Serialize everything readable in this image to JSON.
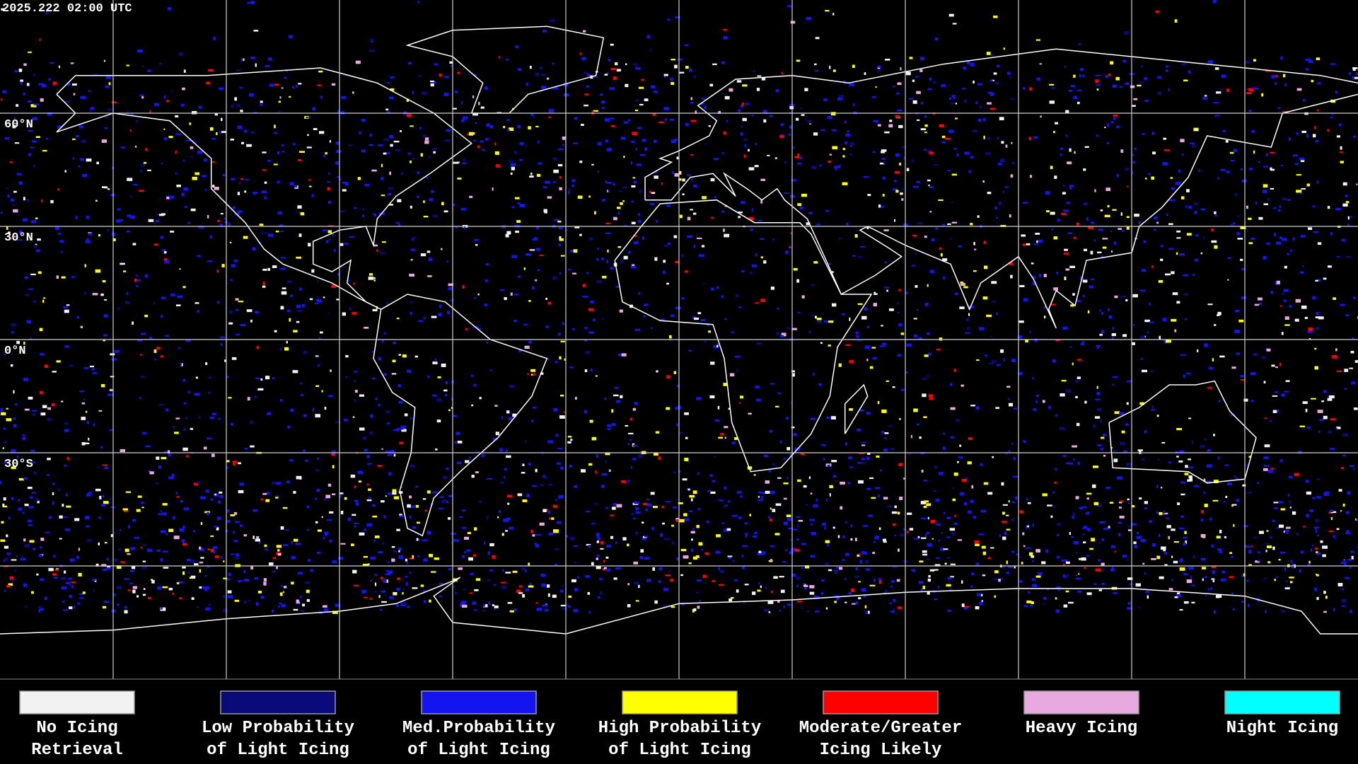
{
  "header": {
    "timestamp": "2025.222 02:00 UTC"
  },
  "latitude_labels": [
    "60°N",
    "30°N",
    "0°N",
    "30°S"
  ],
  "legend": [
    {
      "lines": [
        "No Icing",
        "Retrieval"
      ],
      "color": "#f2f2f2"
    },
    {
      "lines": [
        "Low Probability",
        "of Light Icing"
      ],
      "color": "#0a0a7a"
    },
    {
      "lines": [
        "Med.Probability",
        "of Light Icing"
      ],
      "color": "#1414f0"
    },
    {
      "lines": [
        "High Probability",
        "of Light Icing"
      ],
      "color": "#ffff00"
    },
    {
      "lines": [
        "Moderate/Greater",
        "Icing Likely"
      ],
      "color": "#ff0000"
    },
    {
      "lines": [
        "Heavy Icing"
      ],
      "color": "#e8a8e0"
    },
    {
      "lines": [
        "Night Icing"
      ],
      "color": "#00ffff"
    }
  ]
}
